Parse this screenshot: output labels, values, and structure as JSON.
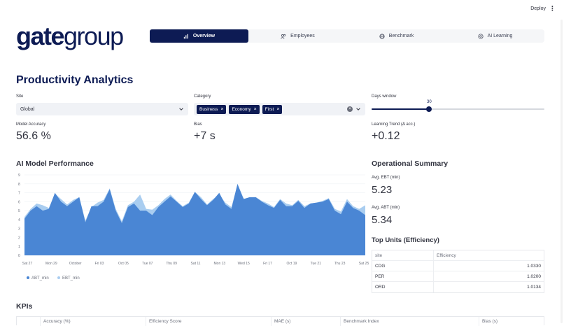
{
  "header": {
    "deploy_label": "Deploy",
    "menu_icon": "kebab-icon"
  },
  "brand": {
    "logo_bold": "gate",
    "logo_thin": "group"
  },
  "tabs": [
    {
      "label": "Overview",
      "icon": "bar-chart-icon",
      "active": true
    },
    {
      "label": "Employees",
      "icon": "users-icon",
      "active": false
    },
    {
      "label": "Benchmark",
      "icon": "globe-icon",
      "active": false
    },
    {
      "label": "AI Learning",
      "icon": "brain-icon",
      "active": false
    }
  ],
  "page": {
    "title": "Productivity Analytics"
  },
  "filters": {
    "site": {
      "label": "Site",
      "value": "Global"
    },
    "category": {
      "label": "Category",
      "chips": [
        "Business",
        "Economy",
        "First"
      ]
    },
    "days": {
      "label": "Days window",
      "value": "30",
      "min": 0,
      "max": 90,
      "current": 30
    }
  },
  "metrics": [
    {
      "label": "Model Accuracy",
      "value": "56.6 %"
    },
    {
      "label": "Bias",
      "value": "+7 s"
    },
    {
      "label": "Learning Trend (Δ acc.)",
      "value": "+0.12"
    }
  ],
  "ai_section": {
    "title": "AI Model Performance"
  },
  "ops": {
    "title": "Operational Summary",
    "ebt_label": "Avg. EBT (min)",
    "ebt_value": "5.23",
    "abt_label": "Avg. ABT (min)",
    "abt_value": "5.34"
  },
  "top_units": {
    "title": "Top Units (Efficiency)",
    "columns": [
      "site",
      "Efficiency"
    ],
    "rows": [
      {
        "site": "CDG",
        "efficiency": "1.0330"
      },
      {
        "site": "PER",
        "efficiency": "1.0200"
      },
      {
        "site": "ORD",
        "efficiency": "1.0134"
      }
    ]
  },
  "kpis": {
    "title": "KPIs",
    "columns": [
      "",
      "Accuracy (%)",
      "Efficiency Score",
      "MAE (s)",
      "Benchmark Index",
      "Bias (s)"
    ]
  },
  "colors": {
    "brand": "#0d1b54",
    "abt": "#4a86d4",
    "ebt": "#a9cdf0"
  },
  "chart_data": {
    "type": "area",
    "ylim": [
      0,
      9
    ],
    "yticks": [
      0,
      1,
      2,
      3,
      4,
      5,
      6,
      7,
      8,
      9
    ],
    "xtick_labels": [
      "Sat 27",
      "Mon 29",
      "October",
      "Fri 03",
      "Oct 05",
      "Tue 07",
      "Thu 09",
      "Sat 11",
      "Mon 13",
      "Wed 15",
      "Fri 17",
      "Oct 19",
      "Tue 21",
      "Thu 23",
      "Sat 25"
    ],
    "n_points": 57,
    "series": [
      {
        "name": "EBT_min",
        "values": [
          4.3,
          5.2,
          5.8,
          5.6,
          5.3,
          6.9,
          6.3,
          5.7,
          6.2,
          6.5,
          3.9,
          5.4,
          5.9,
          6.2,
          7.5,
          5.2,
          3.8,
          5.6,
          6.0,
          6.8,
          5.2,
          5.1,
          5.6,
          6.3,
          6.8,
          6.1,
          5.5,
          5.9,
          7.1,
          6.5,
          5.7,
          6.3,
          6.8,
          5.9,
          5.4,
          7.9,
          6.4,
          6.0,
          6.5,
          6.1,
          5.8,
          5.4,
          6.3,
          5.8,
          5.6,
          6.2,
          5.5,
          5.8,
          5.9,
          6.1,
          6.4,
          5.2,
          4.9,
          6.3,
          5.5,
          5.2,
          5.6
        ]
      },
      {
        "name": "ABT_min",
        "values": [
          4.1,
          5.0,
          5.5,
          5.0,
          5.2,
          7.0,
          6.0,
          5.5,
          6.0,
          6.5,
          3.7,
          5.5,
          5.5,
          6.0,
          7.4,
          5.0,
          3.6,
          5.4,
          5.8,
          5.0,
          5.0,
          4.5,
          5.4,
          6.0,
          6.6,
          6.0,
          5.4,
          5.8,
          7.1,
          6.3,
          5.6,
          6.2,
          7.0,
          5.7,
          5.2,
          8.0,
          6.3,
          6.5,
          6.5,
          6.0,
          5.6,
          5.3,
          6.2,
          5.5,
          5.5,
          6.1,
          5.3,
          5.8,
          5.9,
          6.0,
          6.3,
          5.0,
          4.6,
          6.0,
          5.3,
          5.0,
          4.5
        ]
      }
    ],
    "legend": [
      "ABT_min",
      "EBT_min"
    ]
  }
}
